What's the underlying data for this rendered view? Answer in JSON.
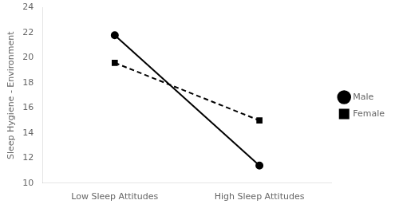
{
  "chart_data": {
    "type": "line",
    "categories": [
      "Low Sleep Attitudes",
      "High Sleep Attitudes"
    ],
    "series": [
      {
        "name": "Male",
        "color": "#000000",
        "values": [
          21.8,
          11.4
        ],
        "marker": "circle",
        "line_style": "solid"
      },
      {
        "name": "Female",
        "color": "#000000",
        "values": [
          19.6,
          15.0
        ],
        "marker": "square",
        "line_style": "dashed"
      }
    ],
    "ylabel": "Sleep Hygiene - Environment",
    "ylim": [
      10,
      24
    ],
    "yticks": [
      10,
      12,
      14,
      16,
      18,
      20,
      22,
      24
    ],
    "grid": false,
    "legend": "right"
  }
}
